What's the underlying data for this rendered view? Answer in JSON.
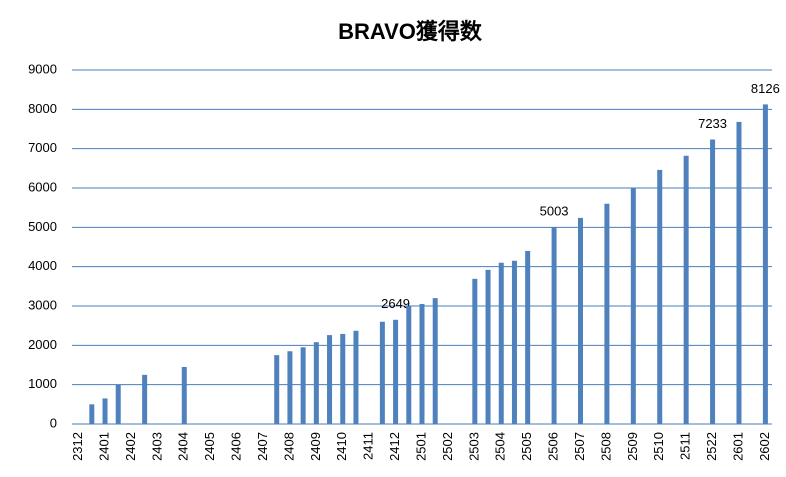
{
  "chart_data": {
    "type": "bar",
    "title": "BRAVO獲得数",
    "categories": [
      "2312",
      null,
      "2401",
      null,
      "2402",
      null,
      "2403",
      null,
      "2404",
      null,
      "2405",
      null,
      "2406",
      null,
      "2407",
      null,
      "2408",
      null,
      "2409",
      null,
      "2410",
      null,
      "2411",
      null,
      "2412",
      null,
      "2501",
      null,
      "2502",
      null,
      "2503",
      null,
      "2504",
      null,
      "2505",
      null,
      "2506",
      null,
      "2507",
      null,
      "2508",
      null,
      "2509",
      null,
      "2510",
      null,
      "2511",
      null,
      "2522",
      null,
      "2601",
      null,
      "2602"
    ],
    "values": [
      null,
      500,
      650,
      1000,
      null,
      1250,
      null,
      null,
      1450,
      null,
      null,
      null,
      null,
      null,
      null,
      1750,
      1850,
      1950,
      2080,
      2260,
      2290,
      2370,
      null,
      2600,
      2649,
      3000,
      3050,
      3200,
      null,
      null,
      3690,
      3920,
      4100,
      4150,
      4400,
      null,
      5003,
      null,
      5240,
      null,
      5600,
      null,
      6000,
      null,
      6460,
      null,
      6820,
      null,
      7233,
      null,
      7680,
      null,
      8126
    ],
    "value_labels": [
      null,
      null,
      null,
      null,
      null,
      null,
      null,
      null,
      null,
      null,
      null,
      null,
      null,
      null,
      null,
      null,
      null,
      null,
      null,
      null,
      null,
      null,
      null,
      null,
      "2649",
      null,
      null,
      null,
      null,
      null,
      null,
      null,
      null,
      null,
      null,
      null,
      "5003",
      null,
      null,
      null,
      null,
      null,
      null,
      null,
      null,
      null,
      null,
      null,
      "7233",
      null,
      null,
      null,
      "8126"
    ],
    "color": "#4f81bd",
    "ylim": [
      0,
      9000
    ],
    "yticks": [
      0,
      1000,
      2000,
      3000,
      4000,
      5000,
      6000,
      7000,
      8000,
      9000
    ],
    "grid": true
  }
}
